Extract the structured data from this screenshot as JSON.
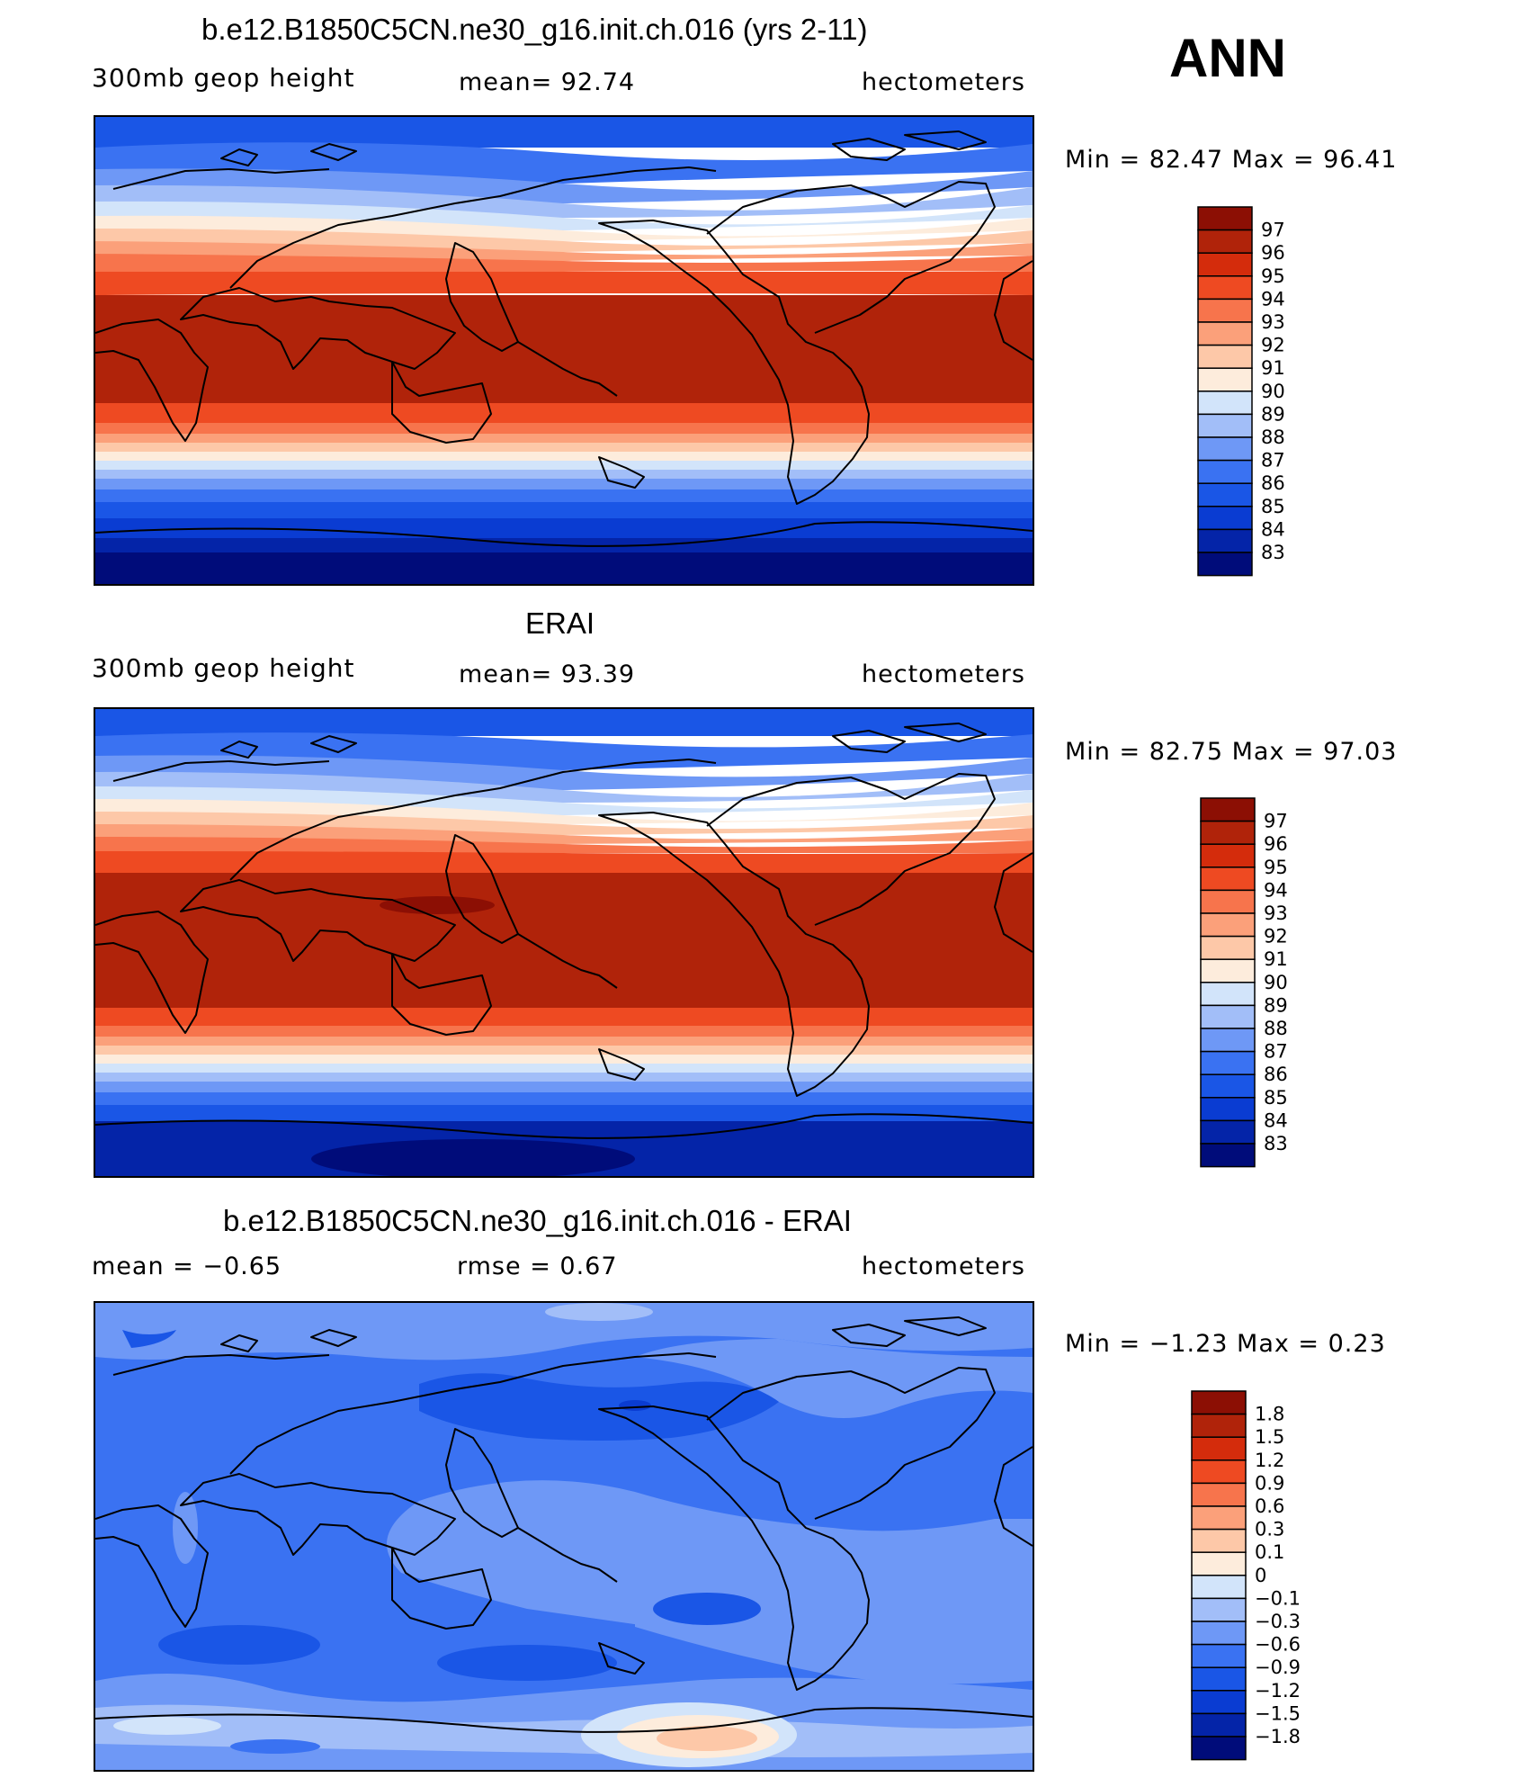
{
  "season": "ANN",
  "colors": {
    "abs": [
      "#000c7a",
      "#0424a8",
      "#0a3cd2",
      "#1a56e6",
      "#3a72f2",
      "#6e98f6",
      "#a2bef8",
      "#d2e4fa",
      "#fdecdc",
      "#fdc8a8",
      "#fba07a",
      "#f7744c",
      "#ee4a22",
      "#d42c0c",
      "#b0230a",
      "#8c0f04"
    ],
    "diff": [
      "#000c7a",
      "#0424a8",
      "#0a3cd2",
      "#1a56e6",
      "#3a72f2",
      "#6e98f6",
      "#a2bef8",
      "#d2e4fa",
      "#fdecdc",
      "#fdc8a8",
      "#fba07a",
      "#f7744c",
      "#ee4a22",
      "#d42c0c",
      "#b0230a",
      "#8c0f04"
    ]
  },
  "panels": [
    {
      "id": "model",
      "title": "b.e12.B1850C5CN.ne30_g16.init.ch.016 (yrs 2-11)",
      "left_label": "300mb geop height",
      "center_label": "mean=   92.74",
      "right_label": "hectometers",
      "minmax": "Min =   82.47 Max =   96.41",
      "colorbar_levels": [
        "97",
        "96",
        "95",
        "94",
        "93",
        "92",
        "91",
        "90",
        "89",
        "88",
        "87",
        "86",
        "85",
        "84",
        "83"
      ]
    },
    {
      "id": "obs",
      "title": "ERAI",
      "left_label": "300mb geop height",
      "center_label": "mean=   93.39",
      "right_label": "hectometers",
      "minmax": "Min =   82.75 Max =   97.03",
      "colorbar_levels": [
        "97",
        "96",
        "95",
        "94",
        "93",
        "92",
        "91",
        "90",
        "89",
        "88",
        "87",
        "86",
        "85",
        "84",
        "83"
      ]
    },
    {
      "id": "diff",
      "title": "b.e12.B1850C5CN.ne30_g16.init.ch.016 - ERAI",
      "left_label": "mean =   −0.65",
      "center_label": "rmse =    0.67",
      "right_label": "hectometers",
      "minmax": "Min =  −1.23 Max =    0.23",
      "colorbar_levels": [
        "1.8",
        "1.5",
        "1.2",
        "0.9",
        "0.6",
        "0.3",
        "0.1",
        "0",
        "−0.1",
        "−0.3",
        "−0.6",
        "−0.9",
        "−1.2",
        "−1.5",
        "−1.8"
      ]
    }
  ]
}
